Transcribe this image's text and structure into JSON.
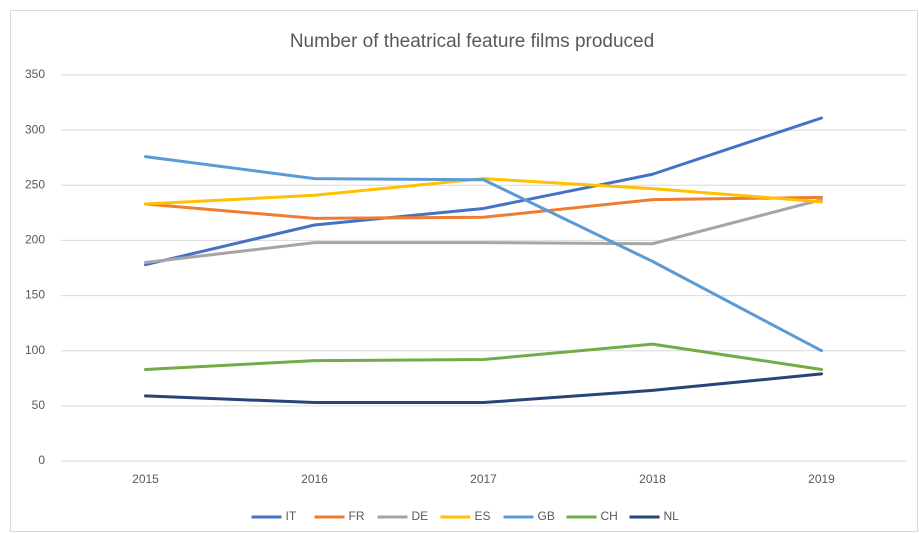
{
  "chart_data": {
    "type": "line",
    "title": "Number of theatrical feature films produced",
    "categories": [
      "2015",
      "2016",
      "2017",
      "2018",
      "2019"
    ],
    "series": [
      {
        "name": "IT",
        "color": "#4472c4",
        "values": [
          178,
          214,
          229,
          260,
          311
        ]
      },
      {
        "name": "FR",
        "color": "#ed7d31",
        "values": [
          233,
          220,
          221,
          237,
          239
        ]
      },
      {
        "name": "DE",
        "color": "#a5a5a5",
        "values": [
          180,
          198,
          198,
          197,
          237
        ]
      },
      {
        "name": "ES",
        "color": "#ffc000",
        "values": [
          233,
          241,
          256,
          247,
          235
        ]
      },
      {
        "name": "GB",
        "color": "#5b9bd5",
        "values": [
          276,
          256,
          255,
          181,
          100
        ]
      },
      {
        "name": "CH",
        "color": "#70ad47",
        "values": [
          83,
          91,
          92,
          106,
          83
        ]
      },
      {
        "name": "NL",
        "color": "#264478",
        "values": [
          59,
          53,
          53,
          64,
          79
        ]
      }
    ],
    "ylim": [
      0,
      350
    ],
    "yticks": [
      0,
      50,
      100,
      150,
      200,
      250,
      300,
      350
    ],
    "grid": true,
    "legend": "bottom"
  }
}
